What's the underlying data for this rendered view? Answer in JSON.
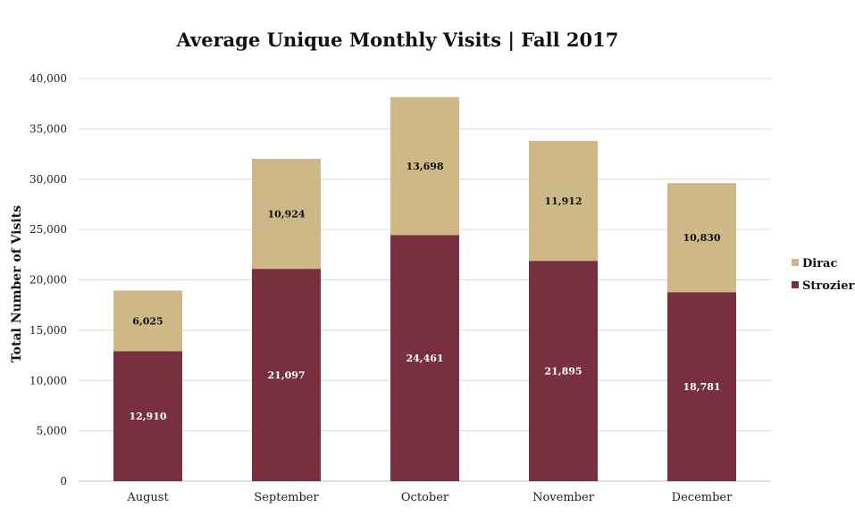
{
  "chart_data": {
    "type": "bar",
    "stacked": true,
    "title": "Average Unique Monthly Visits | Fall 2017",
    "xlabel": "",
    "ylabel": "Total Number of Visits",
    "categories": [
      "August",
      "September",
      "October",
      "November",
      "December"
    ],
    "series": [
      {
        "name": "Strozier",
        "values": [
          12910,
          21097,
          24461,
          21895,
          18781
        ],
        "color": "#782F40"
      },
      {
        "name": "Dirac",
        "values": [
          6025,
          10924,
          13698,
          11912,
          10830
        ],
        "color": "#CEB888"
      }
    ],
    "ylim": [
      0,
      40000
    ],
    "yticks": [
      0,
      5000,
      10000,
      15000,
      20000,
      25000,
      30000,
      35000,
      40000
    ],
    "grid": true,
    "legend": "right",
    "data_labels": true
  }
}
